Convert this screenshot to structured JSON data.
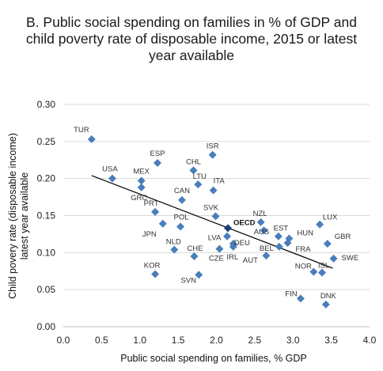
{
  "chart_data": {
    "type": "scatter",
    "title_lines": [
      "B. Public social spending on families in % of GDP and",
      "child poverty rate of disposable income, 2015 or latest",
      "year available"
    ],
    "xlabel": "Public social spending on families, % GDP",
    "ylabel_lines": [
      "Child povery rate (disposable income)",
      "latest year available"
    ],
    "xlim": [
      0.0,
      4.0
    ],
    "ylim": [
      0.0,
      0.3
    ],
    "x_ticks": [
      "0.0",
      "0.5",
      "1.0",
      "1.5",
      "2.0",
      "2.5",
      "3.0",
      "3.5",
      "4.0"
    ],
    "y_ticks": [
      "0.00",
      "0.05",
      "0.10",
      "0.15",
      "0.20",
      "0.25",
      "0.30"
    ],
    "grid": "horizontal",
    "marker_color": "#4a7ebb",
    "trendline": {
      "x": [
        0.37,
        3.52
      ],
      "y": [
        0.204,
        0.079
      ],
      "color": "#000000"
    },
    "points": [
      {
        "label": "TUR",
        "x": 0.37,
        "y": 0.253
      },
      {
        "label": "USA",
        "x": 0.64,
        "y": 0.2
      },
      {
        "label": "MEX",
        "x": 1.02,
        "y": 0.197
      },
      {
        "label": "GRC",
        "x": 1.02,
        "y": 0.188
      },
      {
        "label": "ESP",
        "x": 1.23,
        "y": 0.221
      },
      {
        "label": "PRT",
        "x": 1.2,
        "y": 0.155
      },
      {
        "label": "JPN",
        "x": 1.3,
        "y": 0.139
      },
      {
        "label": "POL",
        "x": 1.53,
        "y": 0.135
      },
      {
        "label": "CAN",
        "x": 1.55,
        "y": 0.171
      },
      {
        "label": "CHL",
        "x": 1.7,
        "y": 0.211
      },
      {
        "label": "LTU",
        "x": 1.76,
        "y": 0.192
      },
      {
        "label": "ISR",
        "x": 1.95,
        "y": 0.232
      },
      {
        "label": "ITA",
        "x": 1.96,
        "y": 0.184
      },
      {
        "label": "SVK",
        "x": 1.99,
        "y": 0.149
      },
      {
        "label": "OECD",
        "x": 2.15,
        "y": 0.133,
        "highlight": true
      },
      {
        "label": "NLD",
        "x": 1.45,
        "y": 0.104
      },
      {
        "label": "CHE",
        "x": 1.71,
        "y": 0.095
      },
      {
        "label": "KOR",
        "x": 1.2,
        "y": 0.071
      },
      {
        "label": "SVN",
        "x": 1.77,
        "y": 0.07
      },
      {
        "label": "LVA",
        "x": 2.14,
        "y": 0.122
      },
      {
        "label": "DEU",
        "x": 2.22,
        "y": 0.112
      },
      {
        "label": "CZE",
        "x": 2.04,
        "y": 0.105
      },
      {
        "label": "IRL",
        "x": 2.22,
        "y": 0.108
      },
      {
        "label": "AUS",
        "x": 2.62,
        "y": 0.13
      },
      {
        "label": "NZL",
        "x": 2.58,
        "y": 0.141
      },
      {
        "label": "AUT",
        "x": 2.65,
        "y": 0.096
      },
      {
        "label": "EST",
        "x": 2.81,
        "y": 0.122
      },
      {
        "label": "BEL",
        "x": 2.82,
        "y": 0.108
      },
      {
        "label": "HUN",
        "x": 2.95,
        "y": 0.119
      },
      {
        "label": "FRA",
        "x": 2.93,
        "y": 0.113
      },
      {
        "label": "LUX",
        "x": 3.35,
        "y": 0.138
      },
      {
        "label": "GBR",
        "x": 3.45,
        "y": 0.112
      },
      {
        "label": "SWE",
        "x": 3.53,
        "y": 0.092
      },
      {
        "label": "ISL",
        "x": 3.38,
        "y": 0.073
      },
      {
        "label": "NOR",
        "x": 3.27,
        "y": 0.074
      },
      {
        "label": "FIN",
        "x": 3.1,
        "y": 0.038
      },
      {
        "label": "DNK",
        "x": 3.43,
        "y": 0.03
      }
    ]
  }
}
